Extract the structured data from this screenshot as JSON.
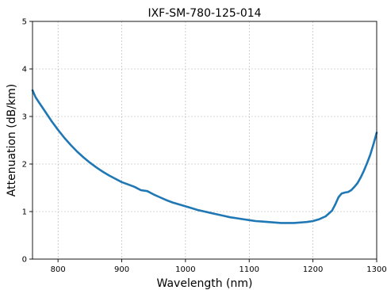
{
  "chart_data": {
    "type": "line",
    "title": "IXF-SM-780-125-014",
    "xlabel": "Wavelength (nm)",
    "ylabel": "Attenuation (dB/km)",
    "xlim": [
      760,
      1300
    ],
    "ylim": [
      0,
      5
    ],
    "xticks": [
      800,
      900,
      1000,
      1100,
      1200,
      1300
    ],
    "yticks": [
      0,
      1,
      2,
      3,
      4,
      5
    ],
    "grid": true,
    "line_color": "#1f77b4",
    "series": [
      {
        "x": [
          760,
          765,
          770,
          780,
          790,
          800,
          810,
          820,
          830,
          840,
          850,
          860,
          870,
          880,
          890,
          900,
          910,
          920,
          930,
          940,
          950,
          960,
          970,
          980,
          990,
          1000,
          1010,
          1020,
          1030,
          1040,
          1050,
          1060,
          1070,
          1080,
          1090,
          1100,
          1110,
          1120,
          1130,
          1140,
          1150,
          1160,
          1170,
          1180,
          1190,
          1200,
          1210,
          1220,
          1230,
          1235,
          1240,
          1245,
          1250,
          1255,
          1260,
          1265,
          1270,
          1275,
          1280,
          1285,
          1290,
          1295,
          1300
        ],
        "y": [
          3.55,
          3.4,
          3.3,
          3.1,
          2.9,
          2.72,
          2.55,
          2.4,
          2.26,
          2.14,
          2.03,
          1.93,
          1.84,
          1.76,
          1.69,
          1.62,
          1.57,
          1.52,
          1.45,
          1.43,
          1.36,
          1.3,
          1.24,
          1.19,
          1.15,
          1.11,
          1.07,
          1.03,
          1.0,
          0.97,
          0.94,
          0.91,
          0.88,
          0.86,
          0.84,
          0.82,
          0.8,
          0.79,
          0.78,
          0.77,
          0.76,
          0.76,
          0.76,
          0.77,
          0.78,
          0.8,
          0.84,
          0.9,
          1.02,
          1.15,
          1.3,
          1.38,
          1.4,
          1.41,
          1.45,
          1.52,
          1.6,
          1.72,
          1.86,
          2.02,
          2.2,
          2.42,
          2.66
        ]
      }
    ]
  }
}
